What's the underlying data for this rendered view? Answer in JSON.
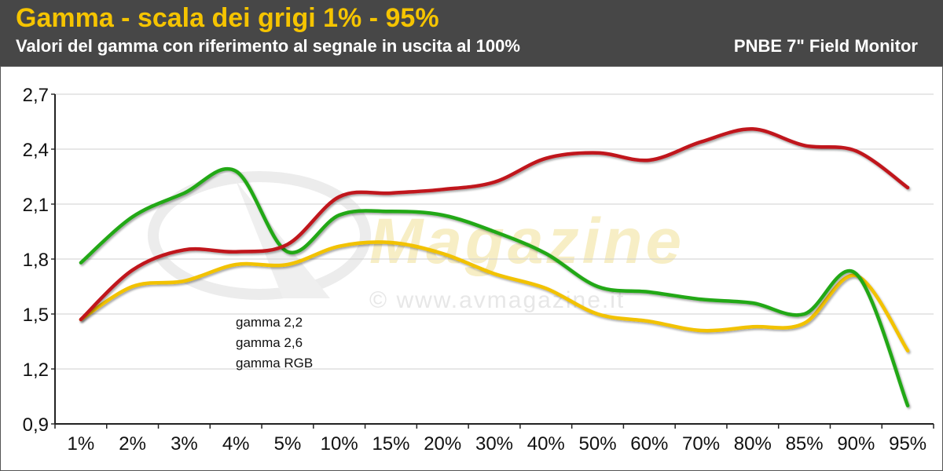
{
  "header": {
    "title": "Gamma - scala dei grigi 1% - 95%",
    "subtitle": "Valori del gamma con riferimento al segnale in uscita al 100%",
    "device": "PNBE 7\" Field Monitor"
  },
  "watermark": {
    "logo_text": "Magazine",
    "copyright": "© www.avmagazine.it"
  },
  "colors": {
    "header_bg": "#474747",
    "title": "#f5c400",
    "gamma22": "#f2c200",
    "gamma26": "#22a814",
    "gammaRGB": "#c0121a"
  },
  "chart_data": {
    "type": "line",
    "title": "Gamma - scala dei grigi 1% - 95%",
    "subtitle": "Valori del gamma con riferimento al segnale in uscita al 100%",
    "xlabel": "",
    "ylabel": "",
    "categories": [
      "1%",
      "2%",
      "3%",
      "4%",
      "5%",
      "10%",
      "15%",
      "20%",
      "30%",
      "40%",
      "50%",
      "60%",
      "70%",
      "80%",
      "85%",
      "90%",
      "95%"
    ],
    "ylim": [
      0.9,
      2.7
    ],
    "yticks": [
      "2,7",
      "2,4",
      "2,1",
      "1,8",
      "1,5",
      "1,2",
      "0,9"
    ],
    "ytick_values": [
      2.7,
      2.4,
      2.1,
      1.8,
      1.5,
      1.2,
      0.9
    ],
    "grid": true,
    "legend_position": "lower-left",
    "series": [
      {
        "name": "gamma 2,2",
        "color": "#f2c200",
        "values": [
          1.47,
          1.65,
          1.68,
          1.77,
          1.77,
          1.87,
          1.89,
          1.83,
          1.72,
          1.64,
          1.5,
          1.46,
          1.41,
          1.43,
          1.45,
          1.71,
          1.3
        ]
      },
      {
        "name": "gamma 2,6",
        "color": "#22a814",
        "values": [
          1.78,
          2.03,
          2.16,
          2.28,
          1.84,
          2.04,
          2.06,
          2.04,
          1.95,
          1.83,
          1.65,
          1.62,
          1.58,
          1.56,
          1.5,
          1.72,
          1.0
        ]
      },
      {
        "name": "gamma RGB",
        "color": "#c0121a",
        "values": [
          1.47,
          1.74,
          1.85,
          1.84,
          1.88,
          2.14,
          2.16,
          2.18,
          2.22,
          2.35,
          2.38,
          2.34,
          2.44,
          2.51,
          2.42,
          2.39,
          2.19
        ]
      }
    ]
  }
}
